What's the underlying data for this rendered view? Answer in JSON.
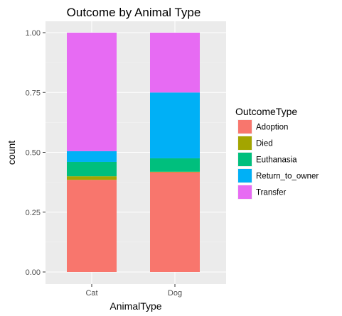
{
  "chart_data": {
    "type": "bar",
    "stacked": true,
    "title": "Outcome by Animal Type",
    "xlabel": "AnimalType",
    "ylabel": "count",
    "categories": [
      "Cat",
      "Dog"
    ],
    "ylim": [
      0,
      1
    ],
    "yticks": [
      "0.00",
      "0.25",
      "0.50",
      "0.75",
      "1.00"
    ],
    "ytick_values": [
      0,
      0.25,
      0.5,
      0.75,
      1
    ],
    "legend_title": "OutcomeType",
    "legend_position": "right",
    "grid": true,
    "background": "#ebebeb",
    "series": [
      {
        "name": "Adoption",
        "color": "#f8766d",
        "values": [
          0.385,
          0.417
        ]
      },
      {
        "name": "Died",
        "color": "#a3a500",
        "values": [
          0.015,
          0.002
        ]
      },
      {
        "name": "Euthanasia",
        "color": "#00bf7d",
        "values": [
          0.06,
          0.056
        ]
      },
      {
        "name": "Return_to_owner",
        "color": "#00b0f6",
        "values": [
          0.045,
          0.275
        ]
      },
      {
        "name": "Transfer",
        "color": "#e76bf3",
        "values": [
          0.495,
          0.25
        ]
      }
    ]
  }
}
